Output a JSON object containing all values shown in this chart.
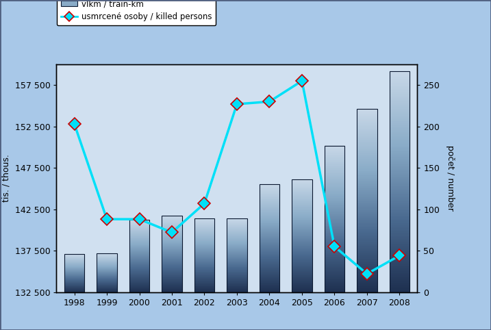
{
  "years": [
    1998,
    1999,
    2000,
    2001,
    2002,
    2003,
    2004,
    2005,
    2006,
    2007,
    2008
  ],
  "bar_values": [
    137100,
    137200,
    141200,
    141700,
    141400,
    141400,
    145500,
    146100,
    150200,
    154600,
    159200
  ],
  "line_values": [
    203,
    88,
    88,
    72,
    107,
    227,
    230,
    255,
    55,
    22,
    44
  ],
  "bar_ylabel": "tis. / thous.",
  "line_ylabel": "počet / number",
  "bar_ylim": [
    132500,
    160000
  ],
  "line_ylim": [
    0,
    275
  ],
  "bar_yticks": [
    132500,
    137500,
    142500,
    147500,
    152500,
    157500
  ],
  "bar_ytick_labels": [
    "132 500",
    "137 500",
    "142 500",
    "147 500",
    "152 500",
    "157 500"
  ],
  "line_yticks": [
    0,
    50,
    100,
    150,
    200,
    250
  ],
  "bar_legend": "vlkm / train-km",
  "line_legend": "usmrcené osoby / killed persons",
  "bg_outer": "#a8c8e8",
  "bg_inner": "#d0e0f0",
  "line_color": "#00e0f8",
  "marker_fill": "#00e0f8",
  "marker_edge": "#cc0000",
  "bar_color_light": "#c8d8e8",
  "bar_color_dark": "#1e3050"
}
